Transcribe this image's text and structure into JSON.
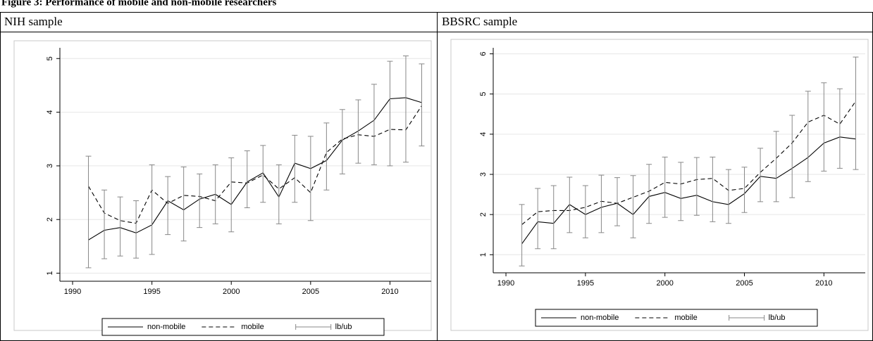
{
  "figure": {
    "title": "Figure 3: Performance of mobile and non-mobile researchers"
  },
  "table": {
    "headers": [
      "NIH sample",
      "BBSRC sample"
    ]
  },
  "chart_data": [
    {
      "type": "line",
      "x": [
        1991,
        1992,
        1993,
        1994,
        1995,
        1996,
        1997,
        1998,
        1999,
        2000,
        2001,
        2002,
        2003,
        2004,
        2005,
        2006,
        2007,
        2008,
        2009,
        2010,
        2011,
        2012
      ],
      "series": [
        {
          "name": "non-mobile",
          "color": "#000000",
          "dash": "solid",
          "values": [
            1.62,
            1.8,
            1.85,
            1.75,
            1.9,
            2.35,
            2.18,
            2.38,
            2.47,
            2.28,
            2.7,
            2.87,
            2.42,
            3.05,
            2.95,
            3.1,
            3.48,
            3.65,
            3.85,
            4.25,
            4.27,
            4.18
          ]
        },
        {
          "name": "mobile",
          "color": "#000000",
          "dash": "dashed",
          "values": [
            2.62,
            2.12,
            1.98,
            1.93,
            2.55,
            2.3,
            2.45,
            2.43,
            2.35,
            2.7,
            2.68,
            2.83,
            2.57,
            2.78,
            2.5,
            3.25,
            3.5,
            3.58,
            3.55,
            3.68,
            3.67,
            4.12
          ]
        },
        {
          "name": "lb/ub",
          "color": "#888888",
          "lower": [
            1.1,
            1.27,
            1.32,
            1.28,
            1.35,
            1.72,
            1.6,
            1.85,
            1.92,
            1.77,
            2.22,
            2.32,
            1.92,
            2.32,
            1.98,
            2.55,
            2.85,
            3.05,
            3.02,
            3.0,
            3.07,
            3.37
          ],
          "upper": [
            3.18,
            2.55,
            2.42,
            2.35,
            3.02,
            2.8,
            2.98,
            2.85,
            3.02,
            3.15,
            3.28,
            3.38,
            3.02,
            3.57,
            3.55,
            3.8,
            4.05,
            4.23,
            4.52,
            4.95,
            5.05,
            4.9
          ]
        }
      ],
      "xlim": [
        1989.2,
        2012.6
      ],
      "xticks": [
        1990,
        1995,
        2000,
        2005,
        2010
      ],
      "ylim": [
        0.85,
        5.2
      ],
      "yticks": [
        1,
        2,
        3,
        4,
        5
      ],
      "grid": true
    },
    {
      "type": "line",
      "x": [
        1991,
        1992,
        1993,
        1994,
        1995,
        1996,
        1997,
        1998,
        1999,
        2000,
        2001,
        2002,
        2003,
        2004,
        2005,
        2006,
        2007,
        2008,
        2009,
        2010,
        2011,
        2012
      ],
      "series": [
        {
          "name": "non-mobile",
          "color": "#000000",
          "dash": "solid",
          "values": [
            1.27,
            1.82,
            1.78,
            2.25,
            2.0,
            2.18,
            2.28,
            2.0,
            2.45,
            2.55,
            2.4,
            2.48,
            2.32,
            2.25,
            2.52,
            2.95,
            2.9,
            3.15,
            3.42,
            3.78,
            3.93,
            3.88
          ]
        },
        {
          "name": "mobile",
          "color": "#000000",
          "dash": "dashed",
          "values": [
            1.75,
            2.07,
            2.1,
            2.1,
            2.18,
            2.33,
            2.28,
            2.43,
            2.58,
            2.8,
            2.76,
            2.87,
            2.9,
            2.6,
            2.65,
            3.05,
            3.4,
            3.78,
            4.3,
            4.47,
            4.25,
            4.82
          ]
        },
        {
          "name": "lb/ub",
          "color": "#888888",
          "lower": [
            0.72,
            1.15,
            1.15,
            1.55,
            1.42,
            1.55,
            1.72,
            1.42,
            1.78,
            1.93,
            1.85,
            1.98,
            1.82,
            1.78,
            2.05,
            2.32,
            2.32,
            2.42,
            2.82,
            3.08,
            3.15,
            3.12
          ],
          "upper": [
            2.25,
            2.65,
            2.72,
            2.93,
            2.72,
            2.98,
            2.92,
            2.97,
            3.25,
            3.43,
            3.3,
            3.42,
            3.43,
            3.12,
            3.18,
            3.65,
            4.07,
            4.47,
            5.07,
            5.28,
            5.13,
            5.92
          ]
        }
      ],
      "xlim": [
        1989.2,
        2012.6
      ],
      "xticks": [
        1990,
        1995,
        2000,
        2005,
        2010
      ],
      "ylim": [
        0.55,
        6.15
      ],
      "yticks": [
        1,
        2,
        3,
        4,
        5,
        6
      ],
      "grid": true
    }
  ]
}
